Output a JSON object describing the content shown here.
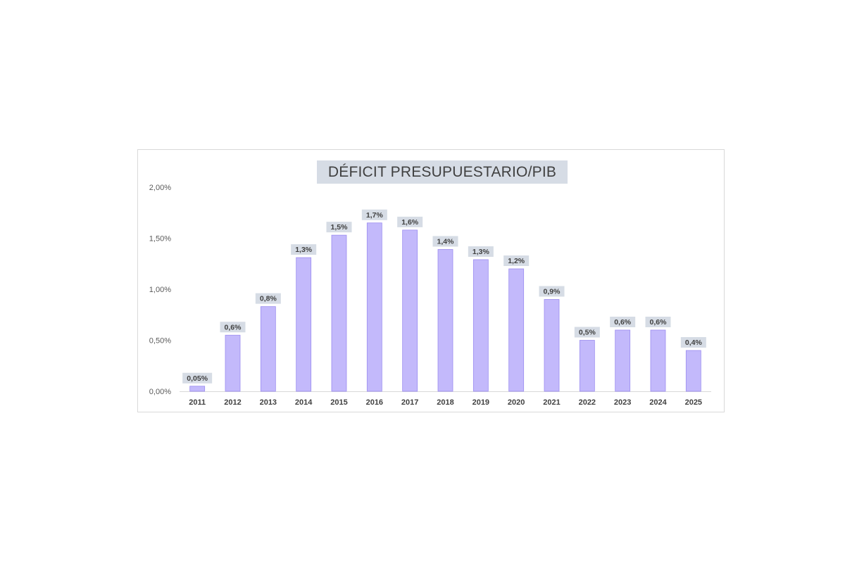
{
  "chart_data": {
    "type": "bar",
    "title": "DÉFICIT PRESUPUESTARIO/PIB",
    "xlabel": "",
    "ylabel": "",
    "categories": [
      "2011",
      "2012",
      "2013",
      "2014",
      "2015",
      "2016",
      "2017",
      "2018",
      "2019",
      "2020",
      "2021",
      "2022",
      "2023",
      "2024",
      "2025"
    ],
    "values": [
      0.05,
      0.55,
      0.83,
      1.31,
      1.53,
      1.65,
      1.58,
      1.39,
      1.29,
      1.2,
      0.9,
      0.5,
      0.6,
      0.6,
      0.4
    ],
    "data_labels": [
      "0,05%",
      "0,6%",
      "0,8%",
      "1,3%",
      "1,5%",
      "1,7%",
      "1,6%",
      "1,4%",
      "1,3%",
      "1,2%",
      "0,9%",
      "0,5%",
      "0,6%",
      "0,6%",
      "0,4%"
    ],
    "ylim": [
      0,
      2.0
    ],
    "y_ticks": [
      0,
      0.5,
      1.0,
      1.5,
      2.0
    ],
    "y_tick_labels": [
      "0,00%",
      "0,50%",
      "1,00%",
      "1,50%",
      "2,00%"
    ],
    "grid": false,
    "legend": "none",
    "colors": {
      "bar_fill": "#c3b9fb",
      "bar_stroke": "#9c8df0",
      "label_box": "#d6dce5",
      "title_box": "#d6dce5",
      "axis": "#d9d9d9"
    }
  }
}
